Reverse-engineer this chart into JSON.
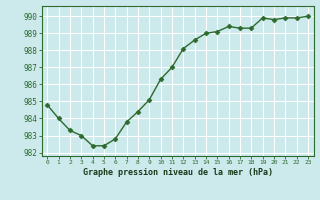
{
  "x": [
    0,
    1,
    2,
    3,
    4,
    5,
    6,
    7,
    8,
    9,
    10,
    11,
    12,
    13,
    14,
    15,
    16,
    17,
    18,
    19,
    20,
    21,
    22,
    23
  ],
  "y": [
    984.8,
    984.0,
    983.3,
    983.0,
    982.4,
    982.4,
    982.8,
    983.8,
    984.4,
    985.1,
    986.3,
    987.0,
    988.1,
    988.6,
    989.0,
    989.1,
    989.4,
    989.3,
    989.3,
    989.9,
    989.8,
    989.9,
    989.9,
    990.0
  ],
  "line_color": "#2d6a2d",
  "marker": "D",
  "marker_size": 2.5,
  "bg_color": "#cce9ec",
  "grid_color": "#ffffff",
  "xlabel": "Graphe pression niveau de la mer (hPa)",
  "xlabel_color": "#1a3a1a",
  "tick_color": "#2d6a2d",
  "ylim": [
    981.8,
    990.6
  ],
  "xlim": [
    -0.5,
    23.5
  ],
  "yticks": [
    982,
    983,
    984,
    985,
    986,
    987,
    988,
    989,
    990
  ],
  "xticks": [
    0,
    1,
    2,
    3,
    4,
    5,
    6,
    7,
    8,
    9,
    10,
    11,
    12,
    13,
    14,
    15,
    16,
    17,
    18,
    19,
    20,
    21,
    22,
    23
  ],
  "ytick_labels": [
    "982",
    "983",
    "984",
    "985",
    "986",
    "987",
    "988",
    "989",
    "990"
  ]
}
